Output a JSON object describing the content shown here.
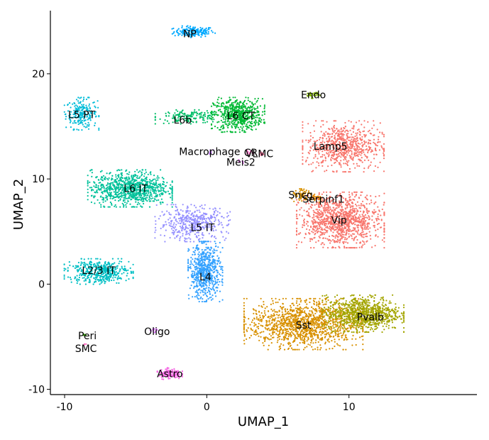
{
  "chart_data": {
    "type": "scatter",
    "title": "",
    "xlabel": "UMAP_1",
    "ylabel": "UMAP_2",
    "xlim": [
      -11,
      19
    ],
    "ylim": [
      -10.5,
      26
    ],
    "xticks": [
      -10,
      0,
      10
    ],
    "yticks": [
      -10,
      0,
      10,
      20
    ],
    "grid": false,
    "legend": "none",
    "clusters": [
      {
        "name": "NP",
        "x": -0.9,
        "y": 24.0,
        "sx": 0.7,
        "sy": 0.25,
        "n": 160,
        "color": "#00A9FF",
        "label_x": -1.2,
        "label_y": 23.8
      },
      {
        "name": "L5 PT",
        "x": -8.8,
        "y": 16.2,
        "sx": 0.55,
        "sy": 0.7,
        "n": 230,
        "color": "#00BCD8",
        "label_x": -8.8,
        "label_y": 16.1
      },
      {
        "name": "L6b",
        "x": -1.2,
        "y": 15.9,
        "sx": 1.1,
        "sy": 0.3,
        "n": 160,
        "color": "#00BE67",
        "label_x": -1.7,
        "label_y": 15.6
      },
      {
        "name": "L6 CT",
        "x": 2.2,
        "y": 16.1,
        "sx": 0.85,
        "sy": 0.75,
        "n": 600,
        "color": "#00B934",
        "label_x": 2.4,
        "label_y": 16.0
      },
      {
        "name": "Endo",
        "x": 7.4,
        "y": 18.0,
        "sx": 0.25,
        "sy": 0.15,
        "n": 30,
        "color": "#7CAE00",
        "label_x": 7.5,
        "label_y": 18.0
      },
      {
        "name": "Lamp5",
        "x": 9.6,
        "y": 13.1,
        "sx": 1.3,
        "sy": 1.1,
        "n": 700,
        "color": "#F8766D",
        "label_x": 8.7,
        "label_y": 13.1
      },
      {
        "name": "Macrophage",
        "x": 0.3,
        "y": 12.6,
        "sx": 0.15,
        "sy": 0.1,
        "n": 10,
        "color": "#C77CFF",
        "label_x": 0.2,
        "label_y": 12.6
      },
      {
        "name": "CR",
        "x": 3.0,
        "y": 12.5,
        "sx": 0.15,
        "sy": 0.1,
        "n": 10,
        "color": "#FF61C3",
        "label_x": 3.1,
        "label_y": 12.5
      },
      {
        "name": "VLMC",
        "x": 3.8,
        "y": 12.4,
        "sx": 0.15,
        "sy": 0.1,
        "n": 8,
        "color": "#FF6A98",
        "label_x": 3.7,
        "label_y": 12.4
      },
      {
        "name": "Meis2",
        "x": 2.4,
        "y": 11.6,
        "sx": 0.1,
        "sy": 0.1,
        "n": 6,
        "color": "#E76BF3",
        "label_x": 2.4,
        "label_y": 11.6
      },
      {
        "name": "L6 IT",
        "x": -5.4,
        "y": 9.1,
        "sx": 1.35,
        "sy": 0.8,
        "n": 900,
        "color": "#00C19A",
        "label_x": -5.0,
        "label_y": 9.1
      },
      {
        "name": "Sncg",
        "x": 6.8,
        "y": 8.4,
        "sx": 0.4,
        "sy": 0.3,
        "n": 70,
        "color": "#D89000",
        "label_x": 6.6,
        "label_y": 8.5
      },
      {
        "name": "Serpinf1",
        "x": 7.7,
        "y": 8.1,
        "sx": 0.3,
        "sy": 0.2,
        "n": 30,
        "color": "#E58700",
        "label_x": 8.2,
        "label_y": 8.1
      },
      {
        "name": "Vip",
        "x": 9.4,
        "y": 6.1,
        "sx": 1.4,
        "sy": 1.2,
        "n": 1100,
        "color": "#F8766D",
        "label_x": 9.3,
        "label_y": 6.1
      },
      {
        "name": "L5 IT",
        "x": -1.0,
        "y": 5.8,
        "sx": 1.2,
        "sy": 0.8,
        "n": 450,
        "color": "#9590FF",
        "label_x": -0.3,
        "label_y": 5.4
      },
      {
        "name": "L4",
        "x": -0.1,
        "y": 1.2,
        "sx": 0.55,
        "sy": 1.3,
        "n": 650,
        "color": "#35A2FF",
        "label_x": -0.1,
        "label_y": 0.7
      },
      {
        "name": "L2/3 IT",
        "x": -7.6,
        "y": 1.2,
        "sx": 1.1,
        "sy": 0.55,
        "n": 450,
        "color": "#00BFC4",
        "label_x": -7.6,
        "label_y": 1.3
      },
      {
        "name": "Sst",
        "x": 6.8,
        "y": -3.8,
        "sx": 1.9,
        "sy": 1.1,
        "n": 1300,
        "color": "#D89000",
        "label_x": 6.8,
        "label_y": -3.9
      },
      {
        "name": "Pvalb",
        "x": 11.0,
        "y": -2.8,
        "sx": 1.3,
        "sy": 0.8,
        "n": 900,
        "color": "#A3A500",
        "label_x": 11.5,
        "label_y": -3.1
      },
      {
        "name": "Peri",
        "x": -8.6,
        "y": -4.8,
        "sx": 0.05,
        "sy": 0.05,
        "n": 4,
        "color": "#39B600",
        "label_x": -8.4,
        "label_y": -4.9
      },
      {
        "name": "SMC",
        "x": -8.6,
        "y": -5.7,
        "sx": 0.05,
        "sy": 0.05,
        "n": 3,
        "color": "#FF62BC",
        "label_x": -8.5,
        "label_y": -6.1
      },
      {
        "name": "Oligo",
        "x": -3.8,
        "y": -4.4,
        "sx": 0.15,
        "sy": 0.1,
        "n": 12,
        "color": "#DB72FB",
        "label_x": -3.5,
        "label_y": -4.5
      },
      {
        "name": "Astro",
        "x": -2.6,
        "y": -8.5,
        "sx": 0.4,
        "sy": 0.25,
        "n": 130,
        "color": "#F564E3",
        "label_x": -2.6,
        "label_y": -8.5
      }
    ]
  }
}
